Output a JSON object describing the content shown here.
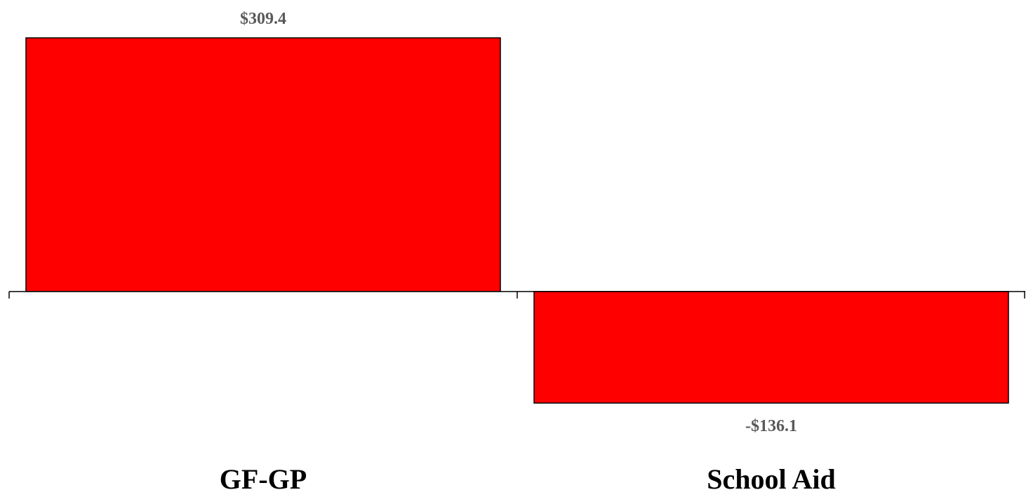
{
  "chart_data": {
    "type": "bar",
    "categories": [
      "GF-GP",
      "School Aid"
    ],
    "values": [
      309.4,
      -136.1
    ],
    "data_labels": [
      "$309.4",
      "-$136.1"
    ],
    "title": "",
    "xlabel": "",
    "ylabel": "",
    "ylim": [
      -136.1,
      309.4
    ],
    "grid": false,
    "legend": "none",
    "bar_color": "#ff0000",
    "bar_edge_color": "#000000",
    "value_label_color": "#595959",
    "axis_color": "#000000"
  }
}
